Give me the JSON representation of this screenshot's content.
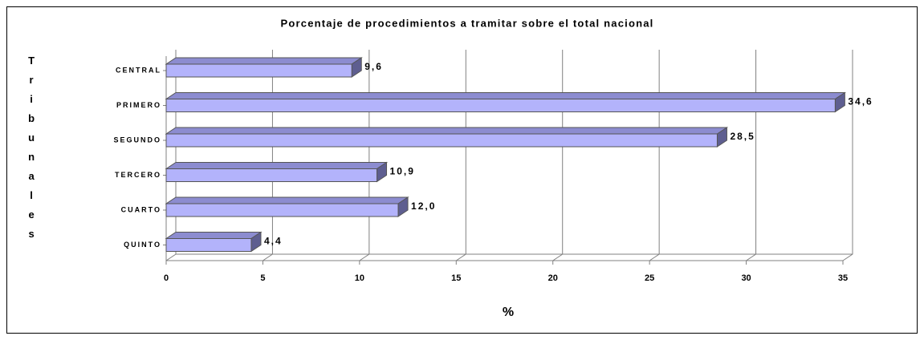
{
  "chart_data": {
    "type": "bar",
    "orientation": "horizontal",
    "title": "Porcentaje de procedimientos a tramitar sobre el total nacional",
    "y_label": "Tribunales",
    "x_label": "%",
    "categories": [
      "CENTRAL",
      "PRIMERO",
      "SEGUNDO",
      "TERCERO",
      "CUARTO",
      "QUINTO"
    ],
    "values": [
      9.6,
      34.6,
      28.5,
      10.9,
      12.0,
      4.4
    ],
    "value_labels": [
      "9,6",
      "34,6",
      "28,5",
      "10,9",
      "12,0",
      "4,4"
    ],
    "color": "#b3b3fb",
    "xlim": [
      0,
      35
    ],
    "xticks": [
      0,
      5,
      10,
      15,
      20,
      25,
      30,
      35
    ],
    "grid": true
  }
}
